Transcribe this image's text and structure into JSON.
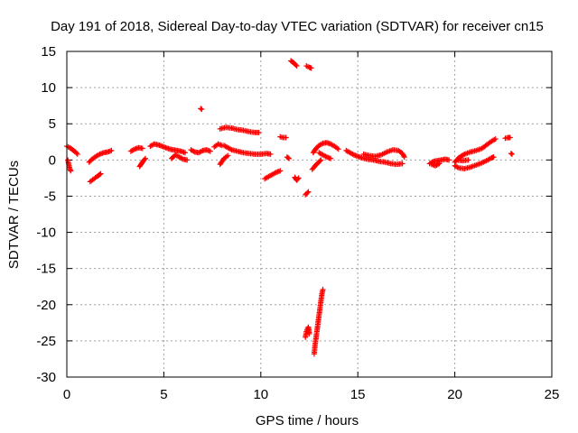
{
  "chart_data": {
    "type": "scatter",
    "title": "Day 191 of 2018, Sidereal Day-to-day VTEC variation (SDTVAR) for receiver cn15",
    "xlabel": "GPS time / hours",
    "ylabel": "SDTVAR / TECUs",
    "xlim": [
      0,
      25
    ],
    "ylim": [
      -30,
      15
    ],
    "xticks": [
      0,
      5,
      10,
      15,
      20,
      25
    ],
    "yticks": [
      -30,
      -25,
      -20,
      -15,
      -10,
      -5,
      0,
      5,
      10,
      15
    ],
    "xtick_labels": [
      "0",
      "5",
      "10",
      "15",
      "20",
      "25"
    ],
    "ytick_labels": [
      "-30",
      "-25",
      "-20",
      "-15",
      "-10",
      "-5",
      "0",
      "5",
      "10",
      "15"
    ],
    "grid": true,
    "marker": "+",
    "color": "#ff0000",
    "series": [
      {
        "name": "cn15",
        "segments": [
          [
            [
              0.0,
              1.9
            ],
            [
              0.15,
              1.7
            ],
            [
              0.3,
              1.4
            ],
            [
              0.45,
              1.1
            ],
            [
              0.55,
              0.8
            ]
          ],
          [
            [
              0.05,
              0.0
            ],
            [
              0.1,
              -0.6
            ],
            [
              0.15,
              -1.2
            ],
            [
              0.2,
              -1.5
            ]
          ],
          [
            [
              1.2,
              -3.0
            ],
            [
              1.4,
              -2.6
            ],
            [
              1.6,
              -2.2
            ],
            [
              1.75,
              -1.9
            ]
          ],
          [
            [
              1.15,
              -0.3
            ],
            [
              1.3,
              0.1
            ],
            [
              1.5,
              0.5
            ],
            [
              1.7,
              0.8
            ],
            [
              1.9,
              1.0
            ],
            [
              2.1,
              1.1
            ],
            [
              2.3,
              1.3
            ]
          ],
          [
            [
              3.3,
              1.2
            ],
            [
              3.5,
              1.5
            ],
            [
              3.7,
              1.7
            ],
            [
              3.9,
              1.6
            ]
          ],
          [
            [
              3.75,
              -0.9
            ],
            [
              3.85,
              -0.5
            ],
            [
              3.95,
              -0.1
            ],
            [
              4.05,
              0.2
            ]
          ],
          [
            [
              4.3,
              1.9
            ],
            [
              4.5,
              2.2
            ],
            [
              4.7,
              2.1
            ],
            [
              4.9,
              1.9
            ],
            [
              5.1,
              1.7
            ],
            [
              5.3,
              1.5
            ],
            [
              5.5,
              1.4
            ],
            [
              5.7,
              1.3
            ],
            [
              5.9,
              1.2
            ],
            [
              6.1,
              1.0
            ]
          ],
          [
            [
              5.4,
              0.2
            ],
            [
              5.6,
              0.7
            ],
            [
              5.8,
              0.4
            ],
            [
              6.0,
              0.1
            ],
            [
              6.2,
              0.0
            ]
          ],
          [
            [
              6.4,
              1.4
            ],
            [
              6.6,
              1.1
            ],
            [
              6.8,
              1.0
            ],
            [
              7.0,
              1.3
            ],
            [
              7.2,
              1.4
            ],
            [
              7.4,
              1.2
            ]
          ],
          [
            [
              6.9,
              7.1
            ],
            [
              6.95,
              7.0
            ]
          ],
          [
            [
              7.6,
              1.8
            ],
            [
              7.8,
              2.2
            ],
            [
              8.0,
              2.0
            ]
          ],
          [
            [
              7.9,
              -0.6
            ],
            [
              8.1,
              0.2
            ],
            [
              8.3,
              0.6
            ]
          ],
          [
            [
              7.9,
              4.3
            ],
            [
              8.2,
              4.5
            ],
            [
              8.5,
              4.4
            ],
            [
              8.8,
              4.2
            ],
            [
              9.1,
              4.1
            ],
            [
              9.4,
              3.9
            ],
            [
              9.7,
              3.8
            ],
            [
              9.9,
              3.8
            ]
          ],
          [
            [
              8.1,
              2.0
            ],
            [
              8.3,
              1.7
            ],
            [
              8.5,
              1.4
            ],
            [
              8.8,
              1.2
            ],
            [
              9.1,
              1.0
            ],
            [
              9.4,
              0.9
            ],
            [
              9.7,
              0.8
            ],
            [
              10.0,
              0.8
            ],
            [
              10.3,
              0.9
            ],
            [
              10.5,
              0.8
            ]
          ],
          [
            [
              10.2,
              -2.6
            ],
            [
              10.4,
              -2.3
            ],
            [
              10.6,
              -2.0
            ],
            [
              10.8,
              -1.7
            ],
            [
              11.0,
              -1.5
            ]
          ],
          [
            [
              11.0,
              3.2
            ],
            [
              11.15,
              3.1
            ],
            [
              11.3,
              3.1
            ]
          ],
          [
            [
              11.35,
              0.4
            ],
            [
              11.45,
              0.2
            ]
          ],
          [
            [
              11.55,
              13.7
            ],
            [
              11.7,
              13.4
            ],
            [
              11.85,
              13.0
            ]
          ],
          [
            [
              12.35,
              13.0
            ],
            [
              12.5,
              12.8
            ],
            [
              12.6,
              12.7
            ]
          ],
          [
            [
              11.75,
              -2.4
            ],
            [
              11.85,
              -2.8
            ],
            [
              11.95,
              -2.5
            ]
          ],
          [
            [
              12.3,
              -4.8
            ],
            [
              12.45,
              -4.4
            ]
          ],
          [
            [
              12.3,
              -24.5
            ],
            [
              12.35,
              -23.7
            ],
            [
              12.45,
              -23.1
            ],
            [
              12.5,
              -24.0
            ]
          ],
          [
            [
              12.75,
              -26.8
            ],
            [
              12.8,
              -25.5
            ],
            [
              12.85,
              -24.5
            ],
            [
              12.9,
              -23.5
            ],
            [
              12.95,
              -22.5
            ],
            [
              13.0,
              -21.5
            ],
            [
              13.05,
              -20.5
            ],
            [
              13.1,
              -19.5
            ],
            [
              13.15,
              -18.5
            ],
            [
              13.2,
              -17.9
            ]
          ],
          [
            [
              12.65,
              -1.3
            ],
            [
              12.8,
              -0.8
            ],
            [
              12.95,
              -0.4
            ],
            [
              13.1,
              0.0
            ]
          ],
          [
            [
              12.7,
              1.0
            ],
            [
              12.85,
              1.6
            ],
            [
              13.0,
              2.0
            ],
            [
              13.2,
              2.3
            ],
            [
              13.4,
              2.4
            ],
            [
              13.6,
              2.2
            ],
            [
              13.8,
              1.9
            ],
            [
              14.0,
              1.5
            ]
          ],
          [
            [
              13.0,
              1.0
            ],
            [
              13.2,
              0.7
            ],
            [
              13.4,
              0.4
            ],
            [
              13.6,
              0.2
            ]
          ],
          [
            [
              14.4,
              1.3
            ],
            [
              14.6,
              1.0
            ],
            [
              14.8,
              0.7
            ],
            [
              15.0,
              0.5
            ],
            [
              15.2,
              0.3
            ],
            [
              15.5,
              0.1
            ],
            [
              15.8,
              0.0
            ],
            [
              16.1,
              -0.2
            ],
            [
              16.4,
              -0.3
            ],
            [
              16.7,
              -0.5
            ],
            [
              17.0,
              -0.6
            ],
            [
              17.3,
              -0.5
            ]
          ],
          [
            [
              15.3,
              0.8
            ],
            [
              15.6,
              0.6
            ],
            [
              15.9,
              0.5
            ],
            [
              16.2,
              0.7
            ],
            [
              16.5,
              1.1
            ],
            [
              16.8,
              1.4
            ],
            [
              17.1,
              1.3
            ],
            [
              17.3,
              0.9
            ],
            [
              17.4,
              0.4
            ]
          ],
          [
            [
              18.7,
              -0.5
            ],
            [
              18.9,
              -0.2
            ],
            [
              19.1,
              -0.1
            ],
            [
              19.3,
              0.0
            ],
            [
              19.5,
              0.1
            ],
            [
              19.7,
              0.0
            ]
          ],
          [
            [
              18.8,
              -0.6
            ],
            [
              19.0,
              -0.8
            ],
            [
              19.2,
              -0.5
            ]
          ],
          [
            [
              20.0,
              -0.3
            ],
            [
              20.2,
              0.3
            ],
            [
              20.5,
              0.8
            ],
            [
              20.8,
              1.1
            ],
            [
              21.1,
              1.3
            ],
            [
              21.4,
              1.6
            ],
            [
              21.7,
              2.2
            ],
            [
              21.9,
              2.6
            ],
            [
              22.1,
              2.9
            ]
          ],
          [
            [
              20.0,
              -0.8
            ],
            [
              20.2,
              -1.1
            ],
            [
              20.5,
              -1.2
            ],
            [
              20.8,
              -1.0
            ],
            [
              21.1,
              -0.7
            ],
            [
              21.4,
              -0.4
            ],
            [
              21.7,
              0.0
            ],
            [
              21.9,
              0.3
            ],
            [
              22.0,
              0.4
            ]
          ],
          [
            [
              20.1,
              0.0
            ],
            [
              20.4,
              -0.1
            ],
            [
              20.7,
              0.0
            ]
          ],
          [
            [
              22.6,
              3.0
            ],
            [
              22.75,
              3.1
            ],
            [
              22.85,
              3.1
            ]
          ],
          [
            [
              22.9,
              0.9
            ],
            [
              22.95,
              0.8
            ]
          ]
        ]
      }
    ]
  }
}
